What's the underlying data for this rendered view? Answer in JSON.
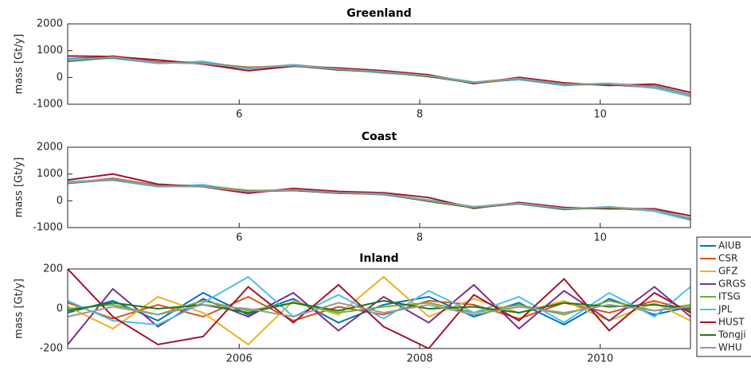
{
  "chart_data": [
    {
      "type": "line",
      "title": "Greenland",
      "ylabel": "mass [Gt/y]",
      "x": [
        4.1,
        4.6,
        5.1,
        5.6,
        6.1,
        6.6,
        7.1,
        7.6,
        8.1,
        8.6,
        9.1,
        9.6,
        10.1,
        10.6,
        11.0
      ],
      "xlim": [
        4.1,
        11.0
      ],
      "xticks": [
        6,
        8,
        10
      ],
      "ylim": [
        -1000,
        2000
      ],
      "yticks": [
        -1000,
        0,
        1000,
        2000
      ],
      "series": [
        {
          "color": "#0072bd",
          "values": [
            700,
            760,
            560,
            520,
            330,
            460,
            320,
            210,
            70,
            -180,
            -40,
            -260,
            -230,
            -330,
            -640
          ]
        },
        {
          "color": "#d95319",
          "values": [
            620,
            800,
            580,
            540,
            380,
            430,
            290,
            190,
            40,
            -210,
            -70,
            -240,
            -270,
            -380,
            -680
          ]
        },
        {
          "color": "#edb120",
          "values": [
            660,
            730,
            530,
            570,
            360,
            470,
            310,
            180,
            60,
            -220,
            -60,
            -280,
            -240,
            -340,
            -720
          ]
        },
        {
          "color": "#7e2f8e",
          "values": [
            640,
            770,
            540,
            560,
            340,
            440,
            280,
            220,
            30,
            -190,
            -30,
            -230,
            -260,
            -360,
            -660
          ]
        },
        {
          "color": "#77ac30",
          "values": [
            650,
            740,
            560,
            550,
            350,
            450,
            300,
            200,
            50,
            -200,
            -50,
            -250,
            -250,
            -350,
            -650
          ]
        },
        {
          "color": "#4dbeee",
          "values": [
            680,
            720,
            520,
            600,
            320,
            480,
            330,
            160,
            80,
            -170,
            -80,
            -300,
            -220,
            -400,
            -700
          ]
        },
        {
          "color": "#a2142f",
          "values": [
            800,
            780,
            650,
            500,
            250,
            420,
            350,
            250,
            100,
            -230,
            0,
            -200,
            -300,
            -250,
            -560
          ]
        },
        {
          "color": "#1a7a1a",
          "values": [
            600,
            740,
            560,
            540,
            360,
            440,
            290,
            200,
            40,
            -210,
            -50,
            -260,
            -260,
            -340,
            -640
          ]
        },
        {
          "color": "#999999",
          "values": [
            630,
            760,
            550,
            530,
            350,
            450,
            310,
            210,
            60,
            -190,
            -40,
            -250,
            -240,
            -350,
            -650
          ]
        }
      ]
    },
    {
      "type": "line",
      "title": "Coast",
      "ylabel": "mass [Gt/y]",
      "x": [
        4.1,
        4.6,
        5.1,
        5.6,
        6.1,
        6.6,
        7.1,
        7.6,
        8.1,
        8.6,
        9.1,
        9.6,
        10.1,
        10.6,
        11.0
      ],
      "xlim": [
        4.1,
        11.0
      ],
      "xticks": [
        6,
        8,
        10
      ],
      "ylim": [
        -1000,
        2000
      ],
      "yticks": [
        -1000,
        0,
        1000,
        2000
      ],
      "series": [
        {
          "color": "#0072bd",
          "values": [
            690,
            800,
            550,
            560,
            340,
            420,
            310,
            250,
            20,
            -240,
            -90,
            -300,
            -240,
            -340,
            -660
          ]
        },
        {
          "color": "#d95319",
          "values": [
            650,
            840,
            570,
            570,
            380,
            400,
            290,
            240,
            0,
            -260,
            -110,
            -280,
            -270,
            -370,
            -690
          ]
        },
        {
          "color": "#edb120",
          "values": [
            700,
            780,
            530,
            590,
            360,
            430,
            300,
            230,
            10,
            -250,
            -100,
            -320,
            -230,
            -330,
            -720
          ]
        },
        {
          "color": "#7e2f8e",
          "values": [
            680,
            810,
            540,
            540,
            340,
            390,
            280,
            260,
            -10,
            -230,
            -80,
            -290,
            -260,
            -360,
            -670
          ]
        },
        {
          "color": "#77ac30",
          "values": [
            700,
            800,
            550,
            550,
            350,
            400,
            300,
            250,
            0,
            -250,
            -100,
            -300,
            -250,
            -350,
            -650
          ]
        },
        {
          "color": "#4dbeee",
          "values": [
            720,
            770,
            520,
            600,
            320,
            440,
            320,
            220,
            30,
            -220,
            -120,
            -330,
            -220,
            -390,
            -720
          ]
        },
        {
          "color": "#a2142f",
          "values": [
            780,
            1000,
            620,
            520,
            280,
            460,
            350,
            300,
            120,
            -280,
            -60,
            -250,
            -300,
            -300,
            -560
          ]
        },
        {
          "color": "#1a7a1a",
          "values": [
            650,
            790,
            560,
            540,
            360,
            390,
            290,
            250,
            -20,
            -260,
            -100,
            -310,
            -260,
            -340,
            -660
          ]
        },
        {
          "color": "#999999",
          "values": [
            670,
            800,
            550,
            530,
            350,
            410,
            300,
            260,
            10,
            -240,
            -90,
            -290,
            -240,
            -350,
            -650
          ]
        }
      ]
    },
    {
      "type": "line",
      "title": "Inland",
      "ylabel": "mass [Gt/y]",
      "x": [
        2004.1,
        2004.6,
        2005.1,
        2005.6,
        2006.1,
        2006.6,
        2007.1,
        2007.6,
        2008.1,
        2008.6,
        2009.1,
        2009.6,
        2010.1,
        2010.6,
        2011.0
      ],
      "xlim": [
        2004.1,
        2011.0
      ],
      "xticks": [
        2006,
        2008,
        2010
      ],
      "ylim": [
        -200,
        200
      ],
      "yticks": [
        -200,
        0,
        200
      ],
      "legend": "outside-right",
      "series": [
        {
          "name": "AIUB",
          "color": "#0072bd",
          "values": [
            -20,
            40,
            -60,
            80,
            -30,
            50,
            -70,
            20,
            60,
            -40,
            30,
            -80,
            50,
            -30,
            10
          ]
        },
        {
          "name": "CSR",
          "color": "#d95319",
          "values": [
            30,
            -50,
            20,
            -40,
            60,
            -60,
            10,
            -30,
            40,
            20,
            -50,
            30,
            -20,
            40,
            -10
          ]
        },
        {
          "name": "GFZ",
          "color": "#edb120",
          "values": [
            10,
            -100,
            60,
            -20,
            -180,
            40,
            -30,
            160,
            -40,
            50,
            -20,
            40,
            -60,
            30,
            -60
          ]
        },
        {
          "name": "GRGS",
          "color": "#7e2f8e",
          "values": [
            -180,
            100,
            -90,
            50,
            -40,
            80,
            -110,
            60,
            -70,
            120,
            -100,
            90,
            -60,
            110,
            -40
          ]
        },
        {
          "name": "ITSG",
          "color": "#77ac30",
          "values": [
            0,
            20,
            -30,
            40,
            -10,
            30,
            -20,
            10,
            30,
            -20,
            20,
            -30,
            40,
            -10,
            20
          ]
        },
        {
          "name": "JPL",
          "color": "#4dbeee",
          "values": [
            40,
            -60,
            -80,
            30,
            160,
            -40,
            70,
            -50,
            90,
            -20,
            60,
            -70,
            80,
            -40,
            110
          ]
        },
        {
          "name": "HUST",
          "color": "#a2142f",
          "values": [
            200,
            -40,
            -180,
            -140,
            110,
            -70,
            120,
            -90,
            -200,
            70,
            -60,
            150,
            -110,
            80,
            -20
          ]
        },
        {
          "name": "Tongji",
          "color": "#1a7a1a",
          "values": [
            -10,
            30,
            0,
            20,
            -20,
            30,
            -10,
            40,
            0,
            10,
            -20,
            30,
            10,
            20,
            0
          ]
        },
        {
          "name": "WHU",
          "color": "#999999",
          "values": [
            -40,
            10,
            -30,
            20,
            0,
            -40,
            30,
            -20,
            20,
            -30,
            10,
            -20,
            20,
            -10,
            10
          ]
        }
      ]
    }
  ]
}
